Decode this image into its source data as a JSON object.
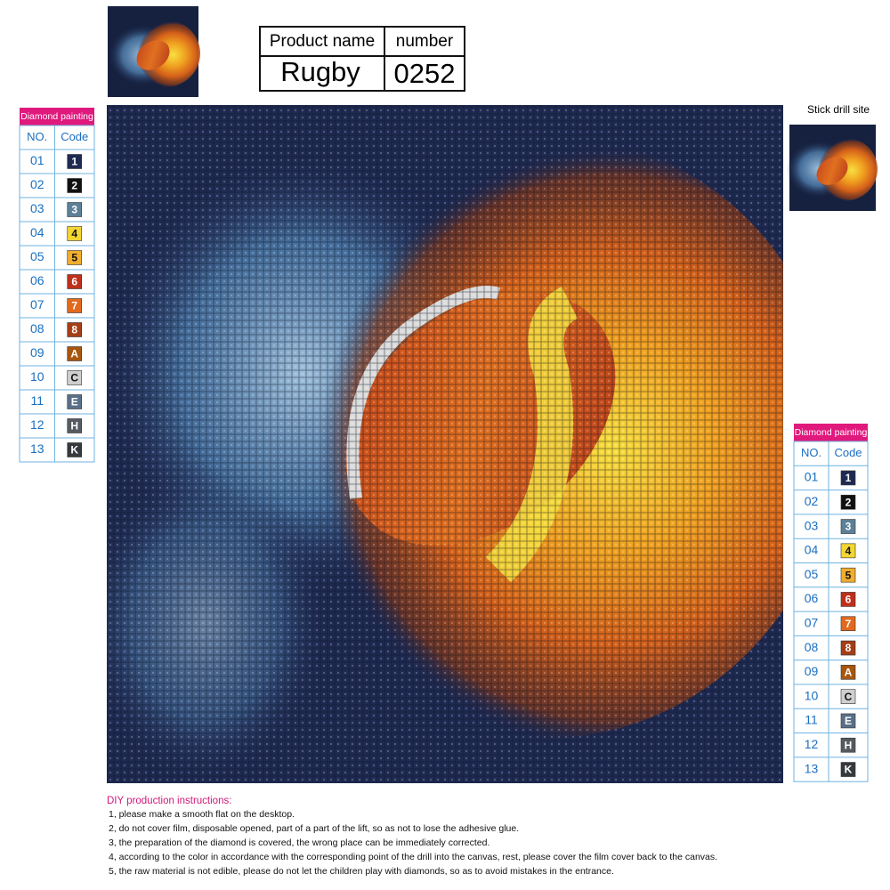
{
  "header": {
    "product_name_label": "Product name",
    "number_label": "number",
    "product_name": "Rugby",
    "number": "0252"
  },
  "legend": {
    "title": "Diamond painting",
    "no_header": "NO.",
    "code_header": "Code",
    "rows": [
      {
        "no": "01",
        "code": "1",
        "color": "#1f2a52"
      },
      {
        "no": "02",
        "code": "2",
        "color": "#111111"
      },
      {
        "no": "03",
        "code": "3",
        "color": "#5d8098"
      },
      {
        "no": "04",
        "code": "4",
        "color": "#f3d633"
      },
      {
        "no": "05",
        "code": "5",
        "color": "#f0ad2e"
      },
      {
        "no": "06",
        "code": "6",
        "color": "#bf2f1a"
      },
      {
        "no": "07",
        "code": "7",
        "color": "#e2691d"
      },
      {
        "no": "08",
        "code": "8",
        "color": "#a43e17"
      },
      {
        "no": "09",
        "code": "A",
        "color": "#a8560f"
      },
      {
        "no": "10",
        "code": "C",
        "color": "#cfcfcf"
      },
      {
        "no": "11",
        "code": "E",
        "color": "#5a6f88"
      },
      {
        "no": "12",
        "code": "H",
        "color": "#555a60"
      },
      {
        "no": "13",
        "code": "K",
        "color": "#35383d"
      }
    ]
  },
  "stick_drill_label": "Stick drill site",
  "instructions": {
    "title": "DIY production instructions:",
    "lines": [
      "1, please make a smooth flat on the desktop.",
      "2, do not cover film, disposable opened, part of a part of the lift, so as not to lose the adhesive glue.",
      "3, the preparation of the diamond is covered, the wrong place can be immediately corrected.",
      "4, according to the color in accordance with the corresponding point of the drill into the canvas, rest, please cover the film cover back to the canvas.",
      "5, the raw material is not edible, please do not let the children play with diamonds, so as to avoid mistakes in the entrance."
    ]
  }
}
